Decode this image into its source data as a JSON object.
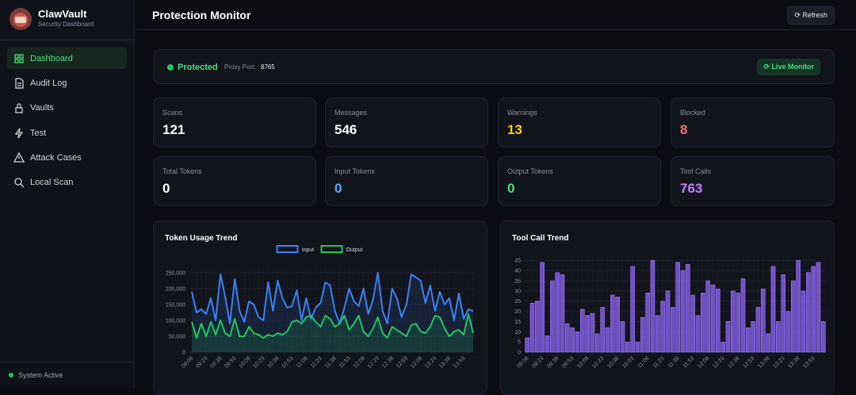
{
  "sidebar": {
    "brand": "ClawVault",
    "subtitle": "Security Dashboard",
    "nav": [
      "Dashboard",
      "Audit Log",
      "Vaults",
      "Test",
      "Attack Cases",
      "Local Scan"
    ],
    "status": "System Active"
  },
  "header": {
    "title": "Protection Monitor",
    "refresh": "Refresh"
  },
  "status_bar": {
    "state": "Protected",
    "port_label": "Proxy Port:",
    "port": "8765",
    "live": "Live Monitor"
  },
  "stats": [
    {
      "label": "Scans",
      "value": 121
    },
    {
      "label": "Messages",
      "value": 546
    },
    {
      "label": "Warnings",
      "value": 13
    },
    {
      "label": "Blocked",
      "value": 8
    },
    {
      "label": "Total Tokens",
      "value": 0
    },
    {
      "label": "Input Tokens",
      "value": 0
    },
    {
      "label": "Output Tokens",
      "value": 0
    },
    {
      "label": "Tool Calls",
      "value": 763
    }
  ],
  "chart_data": [
    {
      "type": "line",
      "title": "Token Usage Trend",
      "categories": [
        "09:08",
        null,
        null,
        "09:23",
        null,
        null,
        "09:38",
        null,
        null,
        "09:53",
        null,
        null,
        "10:08",
        null,
        null,
        "10:23",
        null,
        null,
        "10:38",
        null,
        null,
        "10:53",
        null,
        null,
        "11:08",
        null,
        null,
        "11:23",
        null,
        null,
        "11:38",
        null,
        null,
        "11:53",
        null,
        null,
        "12:08",
        null,
        null,
        "12:23",
        null,
        null,
        "12:38",
        null,
        null,
        "12:53",
        null,
        null,
        "13:08",
        null,
        null,
        "13:23",
        null,
        null,
        "13:38",
        null,
        null,
        "13:53",
        null,
        null
      ],
      "series": [
        {
          "name": "Input",
          "color": "#3b82f6",
          "values": [
            190000,
            125000,
            135000,
            120000,
            170000,
            100000,
            245000,
            175000,
            90000,
            230000,
            130000,
            95000,
            160000,
            150000,
            110000,
            100000,
            220000,
            130000,
            225000,
            170000,
            140000,
            145000,
            195000,
            100000,
            170000,
            105000,
            140000,
            155000,
            220000,
            210000,
            130000,
            90000,
            140000,
            200000,
            160000,
            145000,
            200000,
            120000,
            165000,
            250000,
            130000,
            90000,
            200000,
            170000,
            110000,
            150000,
            245000,
            235000,
            225000,
            155000,
            210000,
            130000,
            190000,
            150000,
            170000,
            100000,
            185000,
            105000,
            135000,
            130000
          ]
        },
        {
          "name": "Output",
          "color": "#22c55e",
          "values": [
            95000,
            45000,
            90000,
            50000,
            95000,
            55000,
            100000,
            60000,
            50000,
            105000,
            50000,
            50000,
            80000,
            60000,
            55000,
            45000,
            55000,
            50000,
            60000,
            55000,
            65000,
            95000,
            100000,
            90000,
            110000,
            115000,
            95000,
            80000,
            115000,
            105000,
            80000,
            90000,
            115000,
            70000,
            90000,
            115000,
            65000,
            50000,
            75000,
            110000,
            60000,
            45000,
            80000,
            70000,
            60000,
            50000,
            85000,
            90000,
            65000,
            60000,
            80000,
            115000,
            110000,
            75000,
            50000,
            65000,
            70000,
            55000,
            120000,
            60000
          ]
        }
      ],
      "ylim": [
        0,
        262000
      ],
      "yticks": [
        0,
        {
          "value": 50000,
          "label": "50,000"
        },
        {
          "value": 100000,
          "label": "100,000"
        },
        {
          "value": 150000,
          "label": "150,000"
        },
        {
          "value": 200000,
          "label": "200,000"
        },
        {
          "value": 250000,
          "label": "250,000"
        }
      ],
      "grid": true,
      "legend": "top"
    },
    {
      "type": "bar",
      "title": "Tool Call Trend",
      "categories": [
        "09:08",
        null,
        null,
        "09:23",
        null,
        null,
        "09:38",
        null,
        null,
        "09:53",
        null,
        null,
        "10:08",
        null,
        null,
        "10:23",
        null,
        null,
        "10:38",
        null,
        null,
        "10:53",
        null,
        null,
        "11:08",
        null,
        null,
        "11:23",
        null,
        null,
        "11:38",
        null,
        null,
        "11:53",
        null,
        null,
        "12:08",
        null,
        null,
        "12:23",
        null,
        null,
        "12:38",
        null,
        null,
        "12:53",
        null,
        null,
        "13:08",
        null,
        null,
        "13:23",
        null,
        null,
        "13:38",
        null,
        null,
        "13:53",
        null,
        null
      ],
      "values": [
        7,
        24,
        25,
        44,
        8,
        35,
        39,
        38,
        14,
        12,
        10,
        21,
        18,
        19,
        9,
        22,
        12,
        28,
        27,
        15,
        5,
        42,
        5,
        17,
        29,
        45,
        18,
        25,
        30,
        22,
        44,
        40,
        43,
        28,
        18,
        29,
        35,
        33,
        31,
        5,
        15,
        30,
        29,
        36,
        12,
        15,
        22,
        31,
        9,
        42,
        15,
        38,
        20,
        35,
        45,
        30,
        39,
        42,
        44,
        15
      ],
      "color": "#8b5cf6",
      "ylim": [
        0,
        47
      ],
      "yticks": [
        0,
        5,
        10,
        15,
        20,
        25,
        30,
        35,
        40,
        45
      ],
      "grid": true
    }
  ]
}
